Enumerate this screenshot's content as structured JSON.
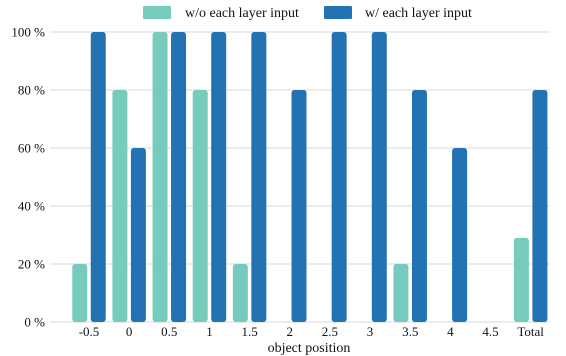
{
  "chart_data": {
    "type": "bar",
    "categories": [
      "-0.5",
      "0",
      "0.5",
      "1",
      "1.5",
      "2",
      "2.5",
      "3",
      "3.5",
      "4",
      "4.5",
      "Total"
    ],
    "series": [
      {
        "name": "w/o each layer input",
        "color": "#76cbbd",
        "values": [
          20,
          80,
          100,
          80,
          20,
          0,
          0,
          0,
          20,
          0,
          0,
          29
        ]
      },
      {
        "name": "w/ each layer input",
        "color": "#2272b4",
        "values": [
          100,
          60,
          100,
          100,
          100,
          80,
          100,
          100,
          80,
          60,
          0,
          80
        ]
      }
    ],
    "title": "",
    "xlabel": "object position",
    "ylabel": "",
    "ylim": [
      0,
      100
    ],
    "yticks": [
      "0 %",
      "20 %",
      "40 %",
      "60 %",
      "80 %",
      "100 %"
    ],
    "grid": true,
    "legend_position": "top"
  }
}
